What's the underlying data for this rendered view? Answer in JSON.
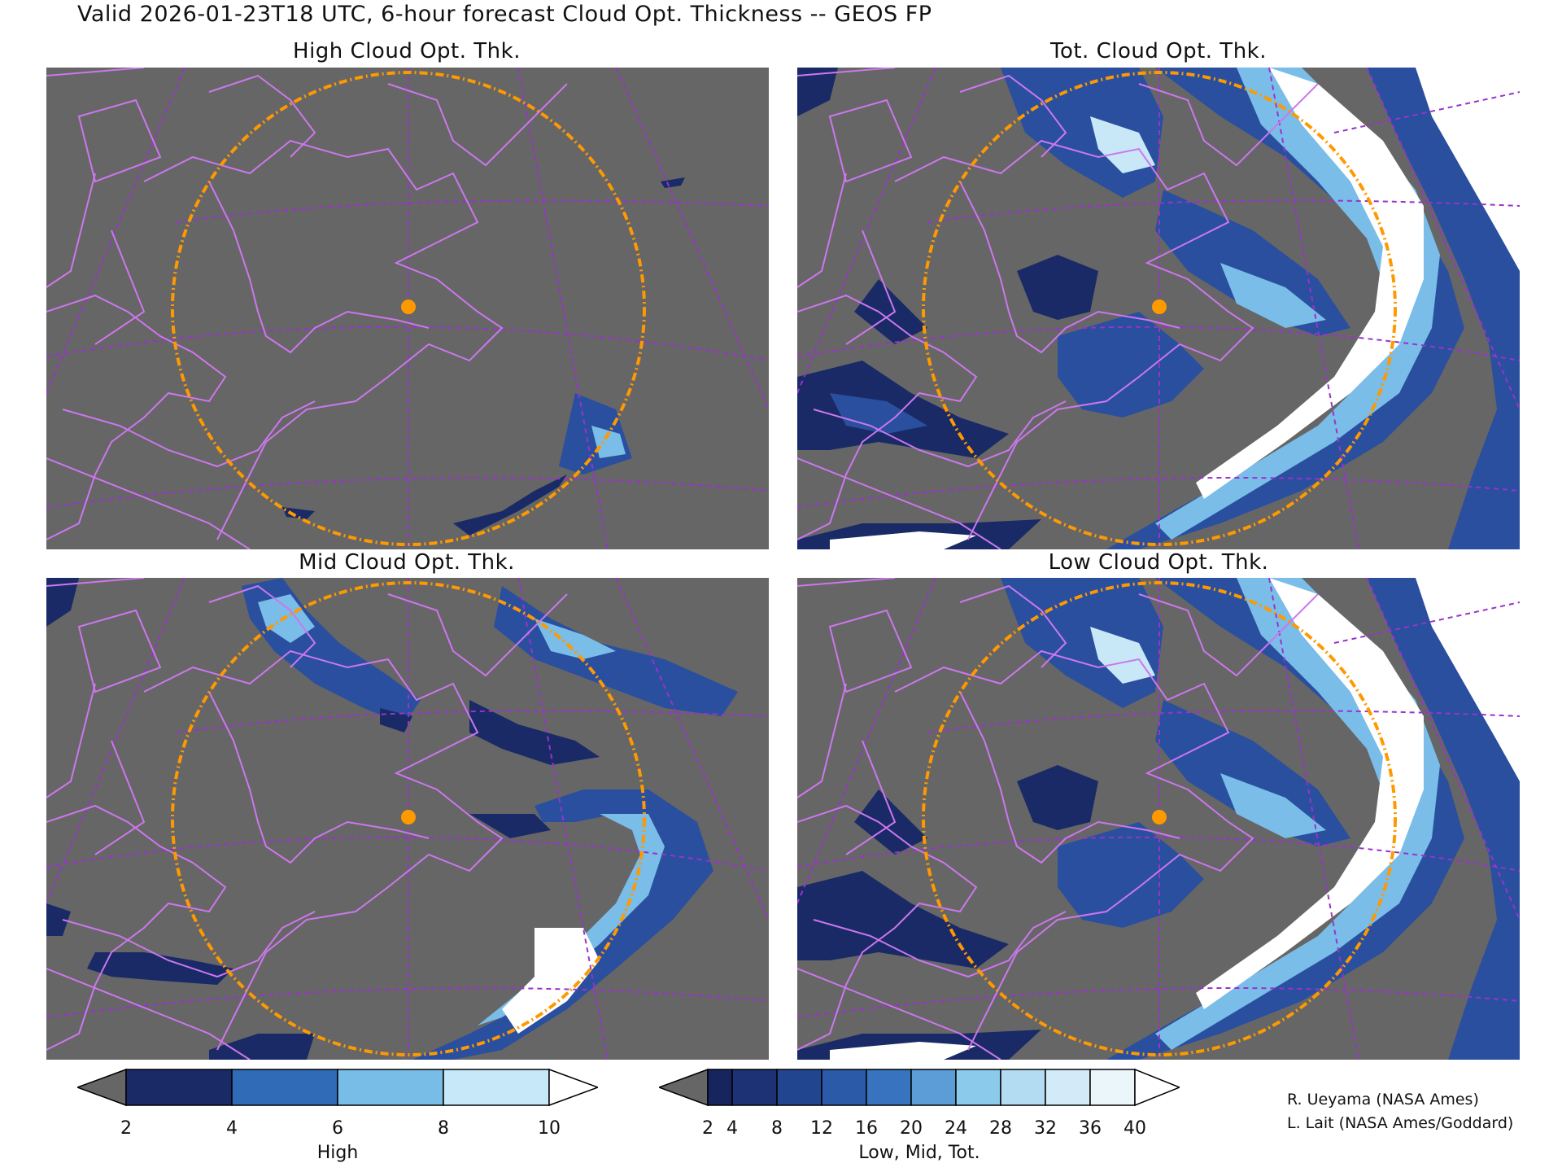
{
  "header": {
    "title": "Valid 2026-01-23T18 UTC, 6-hour forecast Cloud Opt. Thickness -- GEOS FP"
  },
  "panels": [
    {
      "id": "high",
      "title": "High Cloud Opt. Thk."
    },
    {
      "id": "tot",
      "title": "Tot. Cloud Opt. Thk."
    },
    {
      "id": "mid",
      "title": "Mid Cloud Opt. Thk."
    },
    {
      "id": "low",
      "title": "Low Cloud Opt. Thk."
    }
  ],
  "colors": {
    "land_bg": "#666666",
    "coast": "#cc77ee",
    "gridlines": "#9933cc",
    "range_ring": "#ff9900",
    "cloud_levels": [
      "#1a2a66",
      "#2a4f9f",
      "#3a73c2",
      "#79bde8",
      "#c8e8f8",
      "#ffffff"
    ]
  },
  "colorbars": [
    {
      "id": "high",
      "title": "High",
      "labels": [
        "2",
        "4",
        "6",
        "8",
        "10"
      ],
      "colors": [
        "#1a2a66",
        "#2f6bb6",
        "#78bce8",
        "#c6e8f8"
      ]
    },
    {
      "id": "lmt",
      "title": "Low, Mid, Tot.",
      "labels": [
        "2",
        "4",
        "8",
        "12",
        "16",
        "20",
        "24",
        "28",
        "32",
        "36",
        "40"
      ],
      "colors": [
        "#16255e",
        "#1c3275",
        "#22458f",
        "#2a5aa8",
        "#3873bf",
        "#5c9dd7",
        "#8ccaec",
        "#b3dcf3",
        "#d3ebf8",
        "#ebf6fb"
      ]
    }
  ],
  "credits": {
    "line1": "R. Ueyama (NASA Ames)",
    "line2": "L. Lait (NASA Ames/Goddard)"
  }
}
